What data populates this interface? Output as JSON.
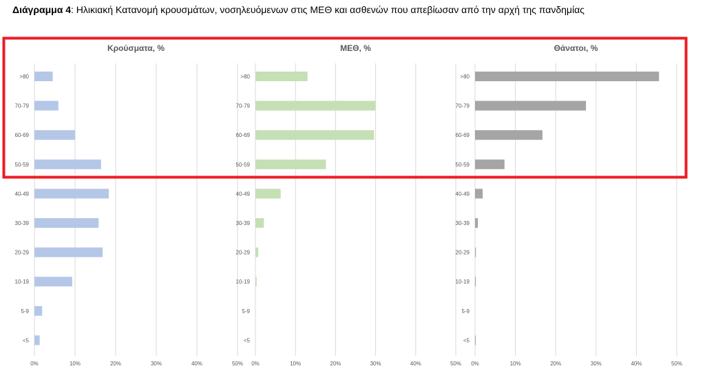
{
  "caption": {
    "label": "Διάγραμμα 4",
    "text": ": Ηλικιακή Κατανομή κρουσμάτων, νοσηλευόμενων στις ΜΕΘ και ασθενών που απεβίωσαν από την αρχή της πανδημίας"
  },
  "highlight": {
    "color": "#ED1C24",
    "categories": [
      ">80",
      "70-79",
      "60-69",
      "50-59"
    ]
  },
  "chart_data": [
    {
      "type": "bar",
      "orientation": "horizontal",
      "title": "Κρούσματα, %",
      "color": "#B4C7E7",
      "categories": [
        ">80",
        "70-79",
        "60-69",
        "50-59",
        "40-49",
        "30-39",
        "20-29",
        "10-19",
        "5-9",
        "<5"
      ],
      "values": [
        4.5,
        5.9,
        10.0,
        16.4,
        18.3,
        15.8,
        16.8,
        9.3,
        1.9,
        1.3
      ],
      "xlim": [
        0,
        50
      ],
      "ticks": [
        "0%",
        "10%",
        "20%",
        "30%",
        "40%",
        "50%"
      ],
      "grid": true
    },
    {
      "type": "bar",
      "orientation": "horizontal",
      "title": "ΜΕΘ, %",
      "color": "#C5E0B4",
      "categories": [
        ">80",
        "70-79",
        "60-69",
        "50-59",
        "40-49",
        "30-39",
        "20-29",
        "10-19",
        "5-9",
        "<5"
      ],
      "values": [
        13.0,
        29.9,
        29.6,
        17.6,
        6.3,
        2.1,
        0.7,
        0.3,
        0,
        0
      ],
      "xlim": [
        0,
        50
      ],
      "ticks": [
        "0%",
        "10%",
        "20%",
        "30%",
        "40%",
        "50%"
      ],
      "grid": true
    },
    {
      "type": "bar",
      "orientation": "horizontal",
      "title": "Θάνατοι, %",
      "color": "#A5A5A5",
      "categories": [
        ">80",
        "70-79",
        "60-69",
        "50-59",
        "40-49",
        "30-39",
        "20-29",
        "10-19",
        "5-9",
        "<5"
      ],
      "values": [
        45.6,
        27.5,
        16.7,
        7.3,
        1.9,
        0.7,
        0.2,
        0.1,
        0,
        0.1
      ],
      "xlim": [
        0,
        50
      ],
      "ticks": [
        "0%",
        "10%",
        "20%",
        "30%",
        "40%",
        "50%"
      ],
      "grid": true
    }
  ]
}
